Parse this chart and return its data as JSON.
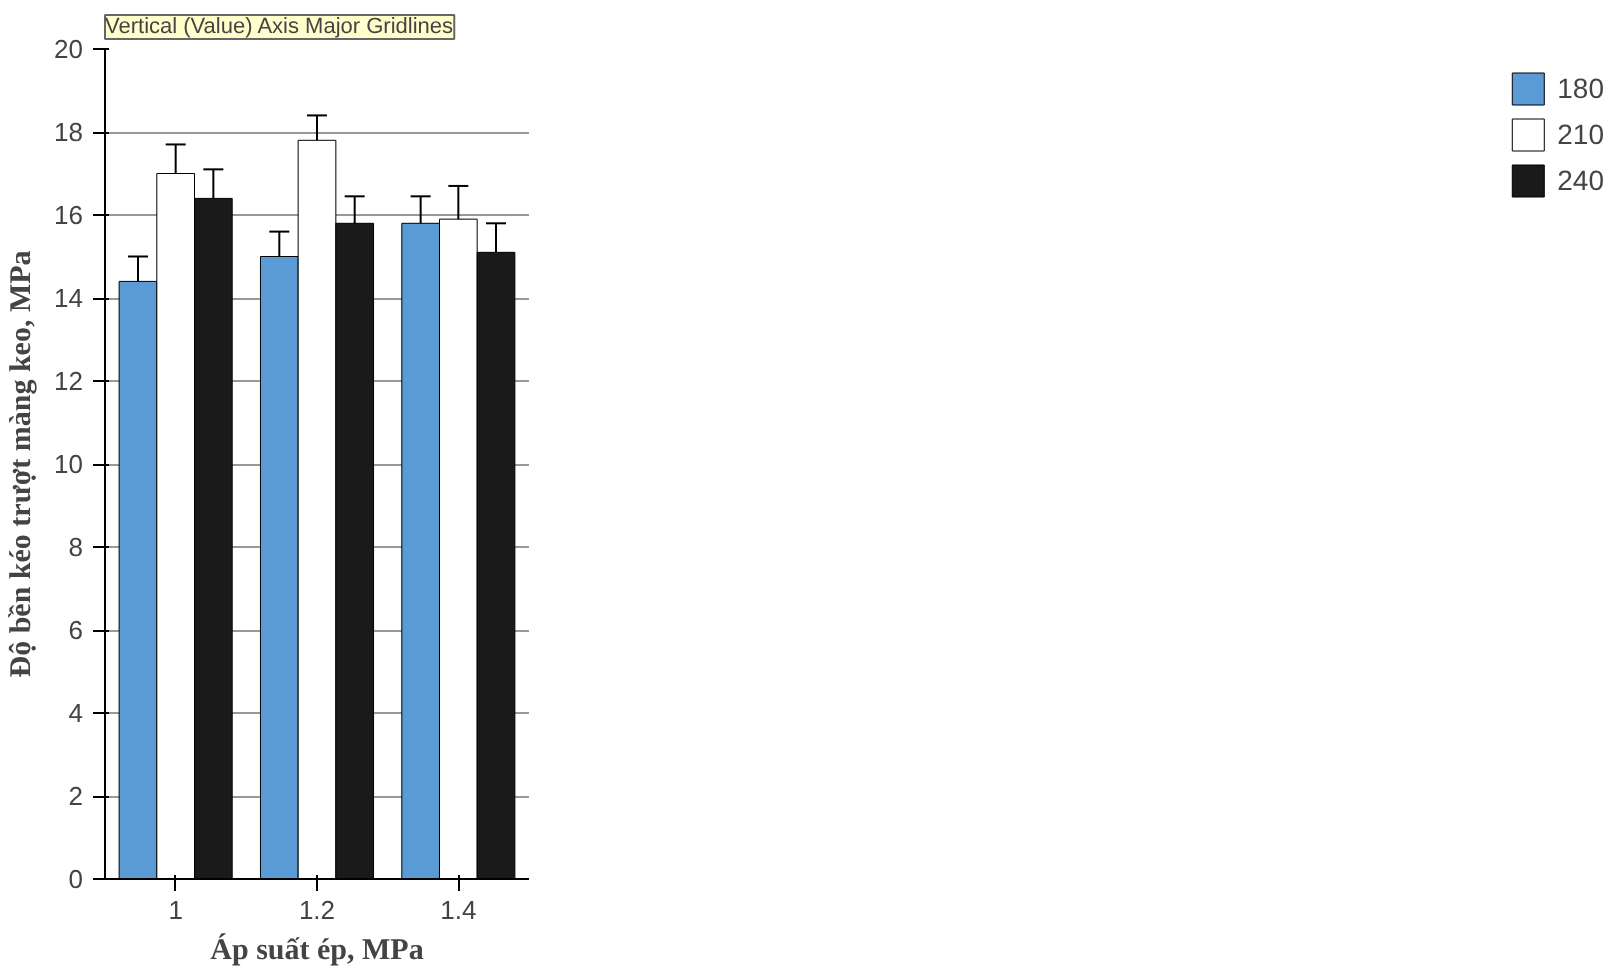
{
  "chart_data": {
    "type": "bar",
    "xlabel": "Áp suất ép, MPa",
    "ylabel": "Độ bền kéo trượt màng keo, MPa",
    "categories": [
      "1",
      "1.2",
      "1.4"
    ],
    "series": [
      {
        "name": "180",
        "color": "#5b9bd5",
        "values": [
          14.4,
          15.0,
          15.8
        ],
        "errors": [
          0.6,
          0.6,
          0.65
        ]
      },
      {
        "name": "210",
        "color": "#ffffff",
        "values": [
          17.0,
          17.8,
          15.9
        ],
        "errors": [
          0.7,
          0.6,
          0.8
        ]
      },
      {
        "name": "240",
        "color": "#1a1a1a",
        "values": [
          16.4,
          15.8,
          15.1
        ],
        "errors": [
          0.7,
          0.65,
          0.7
        ]
      }
    ],
    "ylim": [
      0,
      20
    ],
    "yticks": [
      0,
      2,
      4,
      6,
      8,
      10,
      12,
      14,
      16,
      18,
      20
    ],
    "grid": "y",
    "legend": "right",
    "annotations": [
      "Vertical (Value) Axis Major Gridlines"
    ]
  }
}
